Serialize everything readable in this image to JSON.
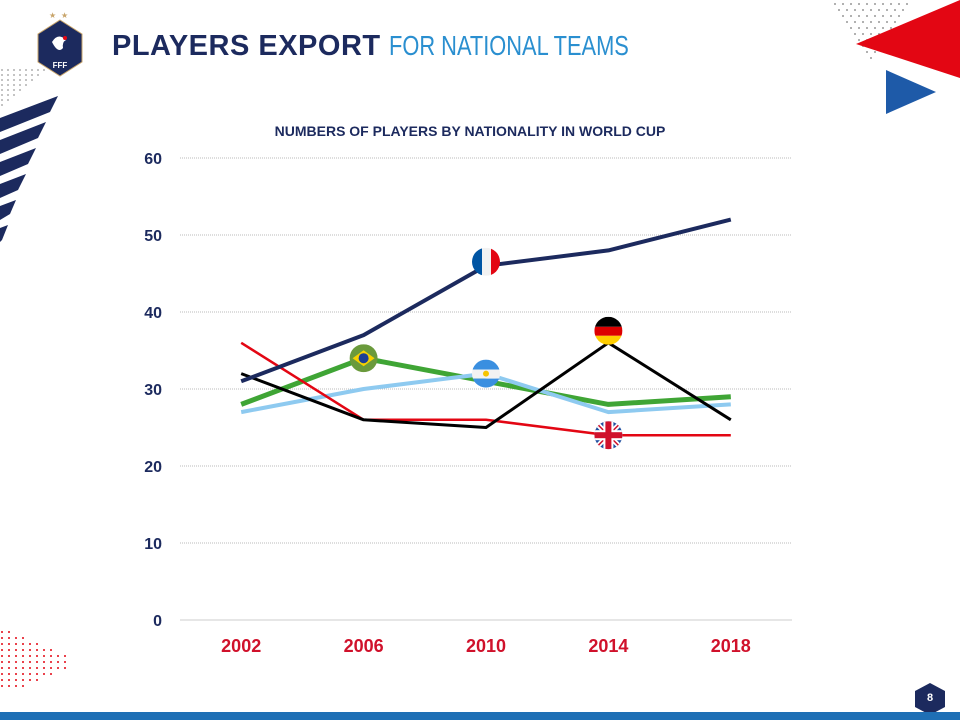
{
  "header": {
    "title_bold": "PLAYERS  EXPORT",
    "title_light": "FOR NATIONAL TEAMS",
    "logo_text": "FFF"
  },
  "page_number": "8",
  "chart_data": {
    "type": "line",
    "title": "NUMBERS OF PLAYERS BY NATIONALITY IN WORLD CUP",
    "categories": [
      "2002",
      "2006",
      "2010",
      "2014",
      "2018"
    ],
    "ylim": [
      0,
      60
    ],
    "yticks": [
      0,
      10,
      20,
      30,
      40,
      50,
      60
    ],
    "grid": true,
    "series": [
      {
        "name": "France",
        "color": "#1c2a5e",
        "width": 4,
        "values": [
          31,
          37,
          46,
          48,
          52
        ],
        "flag_at": 2
      },
      {
        "name": "Brazil",
        "color": "#3fa535",
        "width": 5,
        "values": [
          28,
          34,
          31,
          28,
          29
        ],
        "flag_at": 1
      },
      {
        "name": "Argentina",
        "color": "#8ecaf0",
        "width": 4,
        "values": [
          27,
          30,
          32,
          27,
          28
        ],
        "flag_at": 2
      },
      {
        "name": "England",
        "color": "#e30613",
        "width": 2.5,
        "values": [
          36,
          26,
          26,
          24,
          24
        ],
        "flag_at": 3
      },
      {
        "name": "Germany",
        "color": "#000000",
        "width": 3,
        "values": [
          32,
          26,
          25,
          36,
          26
        ],
        "flag_at": 3
      }
    ]
  }
}
